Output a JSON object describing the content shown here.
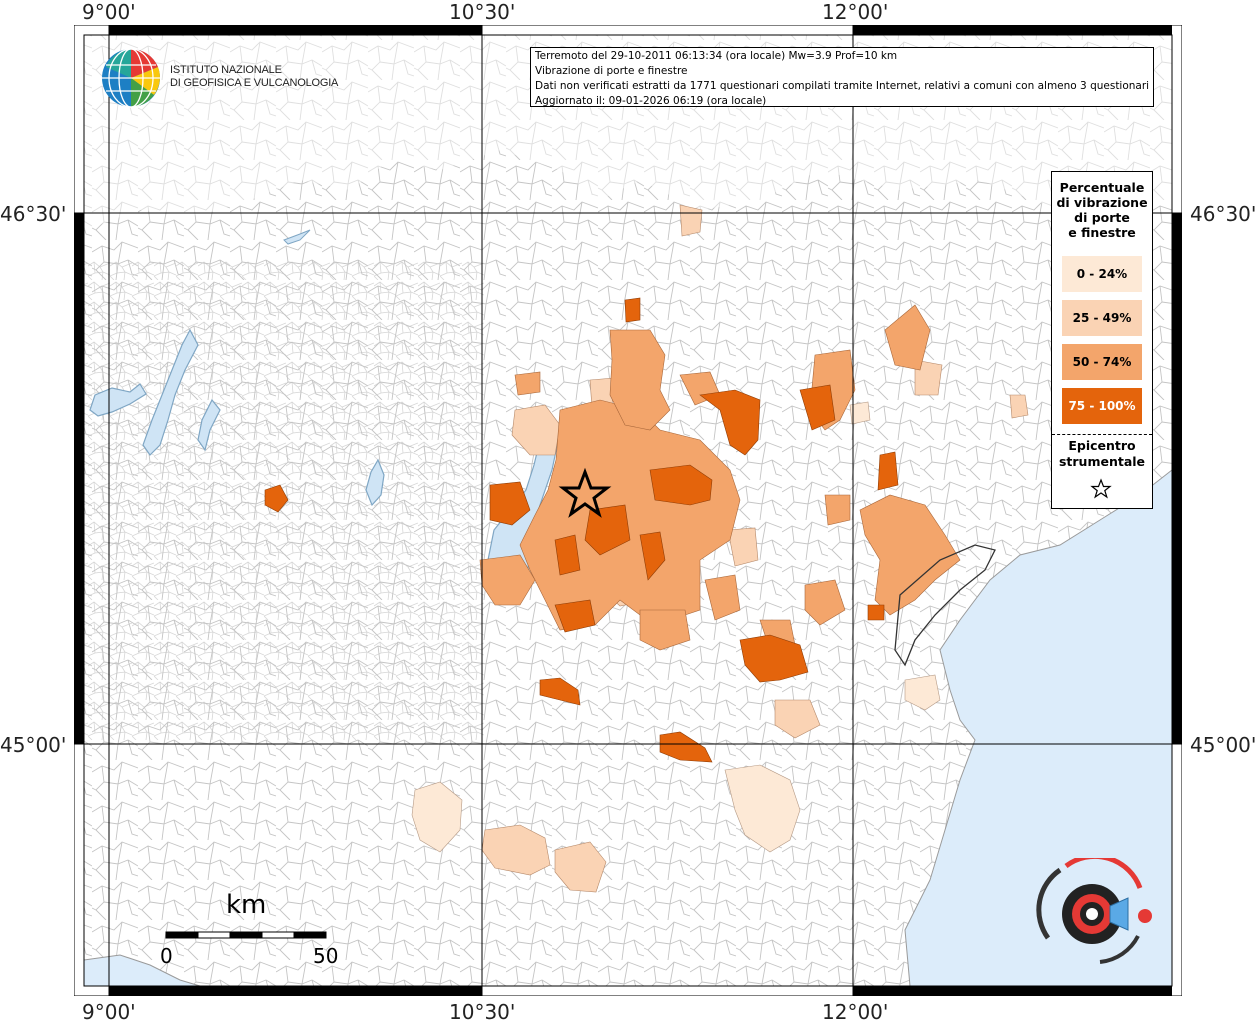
{
  "info": {
    "line1": "Terremoto del 29-10-2011 06:13:34 (ora locale) Mw=3.9 Prof=10 km",
    "line2": "Vibrazione di porte e finestre",
    "line3": "Dati non verificati estratti da 1771 questionari compilati tramite Internet, relativi a comuni con almeno 3 questionari.",
    "line4": "Aggiornato il: 09-01-2026 06:19 (ora locale)"
  },
  "axes": {
    "lon_labels": [
      "9°00'",
      "10°30'",
      "12°00'"
    ],
    "lat_labels": [
      "46°30'",
      "45°00'"
    ]
  },
  "legend": {
    "title_lines": [
      "Percentuale",
      "di vibrazione",
      "di porte",
      "e finestre"
    ],
    "classes": [
      {
        "label": "0 - 24%",
        "color": "#fde9d6"
      },
      {
        "label": "25 - 49%",
        "color": "#fad3b4"
      },
      {
        "label": "50 - 74%",
        "color": "#f3a56b"
      },
      {
        "label": "75 - 100%",
        "color": "#e4640c"
      }
    ],
    "epicenter_lines": [
      "Epicentro",
      "strumentale"
    ],
    "epicenter_icon": "star-icon"
  },
  "logo": {
    "org_line1": "ISTITUTO NAZIONALE",
    "org_line2": "DI GEOFISICA E VULCANOLOGIA"
  },
  "scale_bar": {
    "unit": "km",
    "start": "0",
    "end": "50"
  },
  "colors": {
    "sea": "#dcecfa",
    "lake": "#cfe4f5",
    "boundary": "#bdbdbd",
    "grid": "#000000"
  }
}
